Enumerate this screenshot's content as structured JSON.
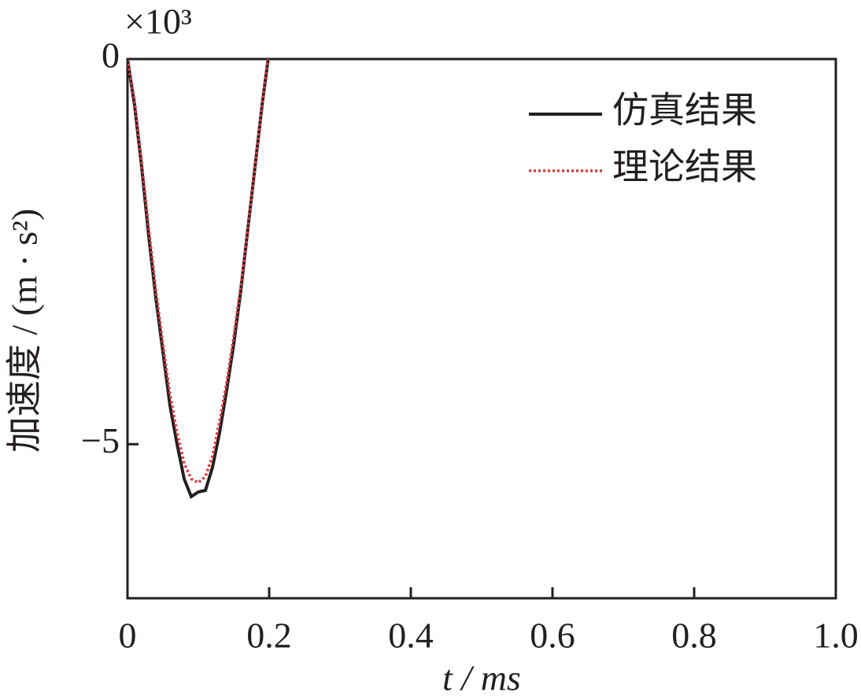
{
  "chart_data": {
    "type": "line",
    "y_multiplier": "×10³",
    "x_label": "t / ms",
    "y_label": "加速度 / (m · s²)",
    "x": [
      0,
      0.01,
      0.02,
      0.03,
      0.04,
      0.05,
      0.06,
      0.07,
      0.08,
      0.09,
      0.1,
      0.11,
      0.12,
      0.13,
      0.14,
      0.15,
      0.16,
      0.17,
      0.18,
      0.19,
      0.2
    ],
    "series": [
      {
        "name": "仿真结果",
        "color": "#231f20",
        "style": "solid",
        "values": [
          0,
          -0.6,
          -1.4,
          -2.3,
          -3.1,
          -3.8,
          -4.5,
          -5.0,
          -5.45,
          -5.68,
          -5.62,
          -5.6,
          -5.3,
          -4.85,
          -4.3,
          -3.7,
          -3.0,
          -2.2,
          -1.4,
          -0.6,
          0.1
        ]
      },
      {
        "name": "理论结果",
        "color": "#e0393e",
        "style": "dotted",
        "values": [
          0,
          -0.55,
          -1.35,
          -2.2,
          -3.0,
          -3.7,
          -4.35,
          -4.85,
          -5.25,
          -5.45,
          -5.5,
          -5.42,
          -5.15,
          -4.7,
          -4.2,
          -3.6,
          -2.95,
          -2.2,
          -1.4,
          -0.6,
          0.15
        ]
      }
    ],
    "xlim": [
      0,
      1
    ],
    "ylim": [
      -7,
      0
    ],
    "xticks": [
      0,
      0.2,
      0.4,
      0.6,
      0.8,
      {
        "value": 1,
        "label": "1.0"
      }
    ],
    "yticks": [
      0,
      {
        "value": -5,
        "label": "−5"
      }
    ],
    "legend": "upper right",
    "grid": false
  }
}
